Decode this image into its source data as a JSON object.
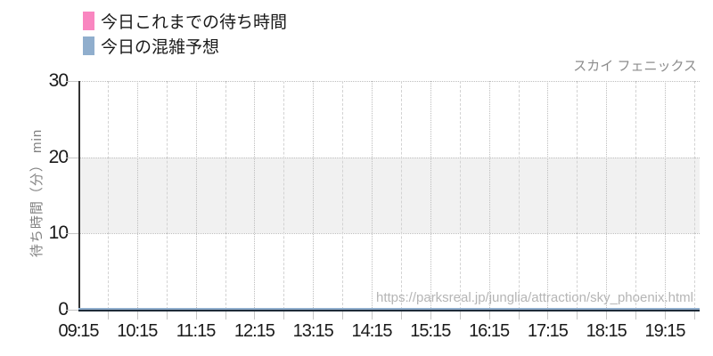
{
  "header": {
    "attraction_name": "スカイ フェニックス"
  },
  "legend": {
    "items": [
      {
        "label": "今日これまでの待ち時間",
        "color": "#f986c0"
      },
      {
        "label": "今日の混雑予想",
        "color": "#90aecd"
      }
    ]
  },
  "watermark": "https://parksreal.jp/junglia/attraction/sky_phoenix.html",
  "axes": {
    "y_label": "待ち時間（分） min",
    "y_ticks": [
      "0",
      "10",
      "20",
      "30"
    ],
    "x_ticks": [
      "09:15",
      "10:15",
      "11:15",
      "12:15",
      "13:15",
      "14:15",
      "15:15",
      "16:15",
      "17:15",
      "18:15",
      "19:15"
    ]
  },
  "chart_data": {
    "type": "line",
    "title": "スカイ フェニックス",
    "x": [
      "09:15",
      "10:15",
      "11:15",
      "12:15",
      "13:15",
      "14:15",
      "15:15",
      "16:15",
      "17:15",
      "18:15",
      "19:15"
    ],
    "series": [
      {
        "name": "今日これまでの待ち時間",
        "color": "#f986c0",
        "values": [
          0,
          0,
          0,
          0,
          0,
          0,
          0,
          0,
          0,
          0,
          0
        ]
      },
      {
        "name": "今日の混雑予想",
        "color": "#90aecd",
        "values": [
          0,
          0,
          0,
          0,
          0,
          0,
          0,
          0,
          0,
          0,
          0
        ]
      }
    ],
    "xlabel": "",
    "ylabel": "待ち時間（分） min",
    "ylim": [
      0,
      30
    ],
    "yticks": [
      0,
      10,
      20,
      30
    ],
    "xtick_interval_minutes": 60,
    "grid_interval_minutes": 30,
    "shaded_band": {
      "from": 10,
      "to": 20,
      "color": "#f1f1f1"
    },
    "grid": "on",
    "legend_position": "top-left"
  },
  "colors": {
    "axis_text": "#1a1a1a",
    "title_text": "#8c8c8c",
    "watermark_text": "#b5b5b5",
    "y_label_text": "#808080",
    "grid_dotted": "#bdbdbd",
    "grid_dashed": "#d2d2d2",
    "tick_mark": "#c6c6c6",
    "y_spine": "#333333",
    "x_spine": "#1e2b38"
  }
}
